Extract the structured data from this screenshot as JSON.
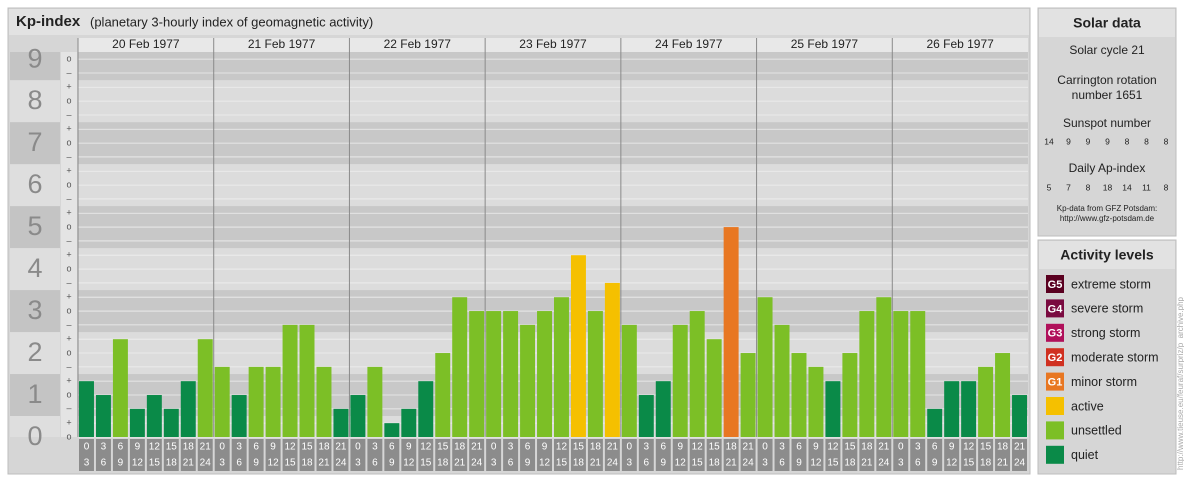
{
  "chart_data": {
    "type": "bar",
    "title": "Kp-index",
    "subtitle": "(planetary 3-hourly index of geomagnetic activity)",
    "days": [
      "20 Feb 1977",
      "21 Feb 1977",
      "22 Feb 1977",
      "23 Feb 1977",
      "24 Feb 1977",
      "25 Feb 1977",
      "26 Feb 1977"
    ],
    "hours": [
      [
        "0",
        "3"
      ],
      [
        "3",
        "6"
      ],
      [
        "6",
        "9"
      ],
      [
        "9",
        "12"
      ],
      [
        "12",
        "15"
      ],
      [
        "15",
        "18"
      ],
      [
        "18",
        "21"
      ],
      [
        "21",
        "24"
      ]
    ],
    "values": [
      1.33,
      1,
      2.33,
      0.67,
      1,
      0.67,
      1.33,
      2.33,
      1.67,
      1,
      1.67,
      1.67,
      2.67,
      2.67,
      1.67,
      0.67,
      1,
      1.67,
      0.33,
      0.67,
      1.33,
      2,
      3.33,
      3,
      3,
      3,
      2.67,
      3,
      3.33,
      4.33,
      3,
      3.67,
      2.67,
      1,
      1.33,
      2.67,
      3,
      2.33,
      5,
      2,
      3.33,
      2.67,
      2,
      1.67,
      1.33,
      2,
      3,
      3.33,
      3,
      3,
      0.67,
      1.33,
      1.33,
      1.67,
      2,
      1
    ],
    "colors": [
      "#0a8a48",
      "#0a8a48",
      "#7cbf26",
      "#0a8a48",
      "#0a8a48",
      "#0a8a48",
      "#0a8a48",
      "#7cbf26",
      "#7cbf26",
      "#0a8a48",
      "#7cbf26",
      "#7cbf26",
      "#7cbf26",
      "#7cbf26",
      "#7cbf26",
      "#0a8a48",
      "#0a8a48",
      "#7cbf26",
      "#0a8a48",
      "#0a8a48",
      "#0a8a48",
      "#7cbf26",
      "#7cbf26",
      "#7cbf26",
      "#7cbf26",
      "#7cbf26",
      "#7cbf26",
      "#7cbf26",
      "#7cbf26",
      "#f5c000",
      "#7cbf26",
      "#f5c000",
      "#7cbf26",
      "#0a8a48",
      "#0a8a48",
      "#7cbf26",
      "#7cbf26",
      "#7cbf26",
      "#e87722",
      "#7cbf26",
      "#7cbf26",
      "#7cbf26",
      "#7cbf26",
      "#7cbf26",
      "#0a8a48",
      "#7cbf26",
      "#7cbf26",
      "#7cbf26",
      "#7cbf26",
      "#7cbf26",
      "#0a8a48",
      "#0a8a48",
      "#0a8a48",
      "#7cbf26",
      "#7cbf26",
      "#0a8a48"
    ],
    "ylim": [
      0,
      9.17
    ],
    "yticks": [
      0,
      1,
      2,
      3,
      4,
      5,
      6,
      7,
      8,
      9
    ],
    "minor_ticks": [
      {
        "value": 0,
        "label": "o"
      },
      {
        "value": 0.33,
        "label": "+"
      },
      {
        "value": 0.67,
        "label": "–"
      },
      {
        "value": 1,
        "label": "o"
      },
      {
        "value": 1.33,
        "label": "+"
      },
      {
        "value": 1.67,
        "label": "–"
      },
      {
        "value": 2,
        "label": "o"
      },
      {
        "value": 2.33,
        "label": "+"
      },
      {
        "value": 2.67,
        "label": "–"
      },
      {
        "value": 3,
        "label": "o"
      },
      {
        "value": 3.33,
        "label": "+"
      },
      {
        "value": 3.67,
        "label": "–"
      },
      {
        "value": 4,
        "label": "o"
      },
      {
        "value": 4.33,
        "label": "+"
      },
      {
        "value": 4.67,
        "label": "–"
      },
      {
        "value": 5,
        "label": "o"
      },
      {
        "value": 5.33,
        "label": "+"
      },
      {
        "value": 5.67,
        "label": "–"
      },
      {
        "value": 6,
        "label": "o"
      },
      {
        "value": 6.33,
        "label": "+"
      },
      {
        "value": 6.67,
        "label": "–"
      },
      {
        "value": 7,
        "label": "o"
      },
      {
        "value": 7.33,
        "label": "+"
      },
      {
        "value": 7.67,
        "label": "–"
      },
      {
        "value": 8,
        "label": "o"
      },
      {
        "value": 8.33,
        "label": "+"
      },
      {
        "value": 8.67,
        "label": "–"
      },
      {
        "value": 9,
        "label": "o"
      }
    ]
  },
  "solar": {
    "title": "Solar data",
    "cycle": "Solar cycle 21",
    "carrington": [
      "Carrington rotation",
      "number 1651"
    ],
    "sunspot_label": "Sunspot number",
    "sunspot": [
      14,
      9,
      9,
      9,
      8,
      8,
      8
    ],
    "ap_label": "Daily Ap-index",
    "ap": [
      5,
      7,
      8,
      18,
      14,
      11,
      8
    ],
    "source": [
      "Kp-data from GFZ Potsdam:",
      "http://www.gfz-potsdam.de"
    ]
  },
  "levels": {
    "title": "Activity levels",
    "items": [
      {
        "badge": "G5",
        "label": "extreme storm",
        "color": "#5a0020"
      },
      {
        "badge": "G4",
        "label": "severe storm",
        "color": "#7a0a40"
      },
      {
        "badge": "G3",
        "label": "strong storm",
        "color": "#b0105a"
      },
      {
        "badge": "G2",
        "label": "moderate storm",
        "color": "#d03020"
      },
      {
        "badge": "G1",
        "label": "minor storm",
        "color": "#e87722"
      },
      {
        "label": "active",
        "color": "#f5c000"
      },
      {
        "label": "unsettled",
        "color": "#7cbf26"
      },
      {
        "label": "quiet",
        "color": "#0a8a48"
      }
    ]
  },
  "url": "http://www.tieuse.eu/feuraf/surpriz/p_archive.php"
}
